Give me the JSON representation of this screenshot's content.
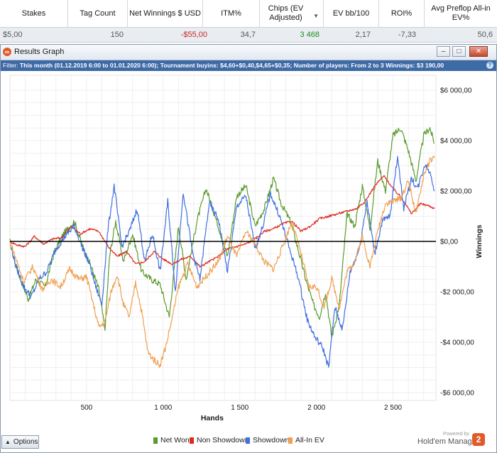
{
  "table": {
    "headers": [
      "Stakes",
      "Tag Count",
      "Net Winnings $ USD",
      "ITM%",
      "Chips (EV Adjusted)",
      "EV bb/100",
      "ROI%",
      "Avg Preflop All-in EV%"
    ],
    "row": [
      "$5,00",
      "150",
      "-$55,00",
      "34,7",
      "3 468",
      "2,17",
      "-7,33",
      "50,6"
    ],
    "colors": {
      "negative": "#cc2222",
      "positive": "#1e8a1e",
      "neutral": "#555555"
    }
  },
  "window": {
    "title": "Results Graph",
    "icon": "holdem-manager-2-icon",
    "controls": [
      "–",
      "□",
      "✕"
    ]
  },
  "filter": {
    "label": "Filter: ",
    "text": "This month (01.12.2019 6:00 to 01.01.2020 6:00); Tournament buyins: $4,60+$0,40,$4,65+$0,35; Number of players: From 2 to 3 Winnings: $3 190,00",
    "help": "?"
  },
  "options_label": "Options",
  "powered_by": "Powered by",
  "brand": "Hold'em Manager",
  "brand_mark": "2",
  "chart_data": {
    "type": "line",
    "xlabel": "Hands",
    "ylabel": "Winnings",
    "xlim": [
      0,
      2780
    ],
    "ylim": [
      -6000,
      6000
    ],
    "x_ticks": [
      500,
      1000,
      1500,
      2000,
      2500
    ],
    "x_tick_labels": [
      "500",
      "1 000",
      "1 500",
      "2 000",
      "2 500"
    ],
    "y_ticks": [
      6000,
      4000,
      2000,
      0,
      -2000,
      -4000,
      -6000
    ],
    "y_tick_labels": [
      "$6 000,00",
      "$4 000,00",
      "$2 000,00",
      "$0,00",
      "-$2 000,00",
      "-$4 000,00",
      "-$6 000,00"
    ],
    "grid": true,
    "series": [
      {
        "name": "Net Won",
        "color": "#5a9a2e",
        "x": [
          0,
          30,
          70,
          120,
          170,
          230,
          290,
          350,
          420,
          480,
          530,
          580,
          620,
          650,
          690,
          740,
          800,
          860,
          920,
          980,
          1040,
          1100,
          1150,
          1220,
          1280,
          1350,
          1420,
          1480,
          1540,
          1600,
          1660,
          1720,
          1770,
          1830,
          1880,
          1930,
          1980,
          2020,
          2060,
          2100,
          2150,
          2200,
          2250,
          2300,
          2350,
          2400,
          2450,
          2500,
          2550,
          2600,
          2650,
          2700,
          2740,
          2770
        ],
        "values": [
          0,
          -800,
          -1500,
          -2300,
          -1500,
          -1800,
          -400,
          300,
          800,
          -300,
          -1000,
          -1900,
          -3500,
          -600,
          800,
          -800,
          300,
          -1200,
          -1500,
          -1700,
          -3000,
          600,
          -1500,
          800,
          2100,
          800,
          -600,
          1800,
          2200,
          600,
          1300,
          2500,
          1500,
          800,
          -300,
          -1500,
          -2500,
          -3000,
          -2000,
          -3800,
          -2500,
          1100,
          600,
          2200,
          500,
          3200,
          2000,
          4200,
          4500,
          3600,
          2400,
          4200,
          4500,
          3900
        ]
      },
      {
        "name": "Non Showdown",
        "color": "#dd2a1e",
        "x": [
          0,
          50,
          100,
          160,
          220,
          280,
          340,
          400,
          460,
          520,
          580,
          640,
          700,
          760,
          820,
          880,
          940,
          1000,
          1060,
          1120,
          1180,
          1240,
          1300,
          1360,
          1420,
          1480,
          1540,
          1600,
          1660,
          1720,
          1780,
          1840,
          1900,
          1960,
          2020,
          2080,
          2140,
          2200,
          2260,
          2320,
          2380,
          2440,
          2500,
          2560,
          2620,
          2680,
          2740,
          2770
        ],
        "values": [
          0,
          -150,
          -200,
          200,
          -100,
          100,
          150,
          600,
          300,
          500,
          400,
          -200,
          -600,
          -400,
          -900,
          -800,
          -400,
          -700,
          -900,
          -700,
          -600,
          -1000,
          -800,
          -600,
          -300,
          -200,
          -100,
          100,
          400,
          500,
          700,
          800,
          400,
          600,
          900,
          1000,
          1100,
          1200,
          1300,
          1600,
          2200,
          2600,
          2100,
          1700,
          1100,
          1500,
          1400,
          1300
        ]
      },
      {
        "name": "Showdown",
        "color": "#3f6fe0",
        "x": [
          0,
          40,
          90,
          140,
          190,
          240,
          300,
          360,
          420,
          470,
          520,
          560,
          600,
          640,
          680,
          730,
          780,
          830,
          880,
          930,
          980,
          1030,
          1080,
          1130,
          1190,
          1240,
          1300,
          1360,
          1420,
          1480,
          1540,
          1600,
          1650,
          1700,
          1760,
          1820,
          1880,
          1940,
          1990,
          2040,
          2080,
          2120,
          2170,
          2220,
          2280,
          2330,
          2380,
          2430,
          2480,
          2530,
          2570,
          2620,
          2660,
          2710,
          2750,
          2770
        ],
        "values": [
          0,
          -1000,
          -1800,
          -2200,
          -1500,
          -1200,
          -300,
          200,
          600,
          -200,
          -900,
          -1800,
          -2500,
          500,
          2200,
          -200,
          400,
          1300,
          -800,
          300,
          -1200,
          1600,
          -2000,
          2000,
          -400,
          -1500,
          1500,
          900,
          -1200,
          1400,
          1800,
          -300,
          600,
          1900,
          1000,
          -200,
          -1400,
          -3100,
          -3800,
          -4200,
          -5000,
          -2600,
          -3500,
          -1200,
          -300,
          1600,
          -500,
          800,
          1000,
          3400,
          1300,
          2500,
          2100,
          3100,
          2600,
          2000
        ]
      },
      {
        "name": "All-In EV",
        "color": "#f0a050",
        "x": [
          0,
          40,
          90,
          150,
          210,
          270,
          330,
          390,
          450,
          500,
          540,
          580,
          620,
          660,
          700,
          740,
          780,
          820,
          860,
          900,
          940,
          980,
          1020,
          1060,
          1100,
          1160,
          1220,
          1290,
          1360,
          1420,
          1480,
          1540,
          1600,
          1660,
          1720,
          1780,
          1840,
          1900,
          1950,
          2000,
          2050,
          2100,
          2150,
          2200,
          2250,
          2300,
          2350,
          2400,
          2450,
          2500,
          2550,
          2600,
          2650,
          2700,
          2740,
          2770
        ],
        "values": [
          0,
          -700,
          -1600,
          -1000,
          -1900,
          -1500,
          -1800,
          -1100,
          -1500,
          -1400,
          -2400,
          -3400,
          -3200,
          -2000,
          -1300,
          -2500,
          -3000,
          -1600,
          -2800,
          -4400,
          -4700,
          -4900,
          -4100,
          -3000,
          -1800,
          -900,
          -1800,
          -1300,
          -800,
          200,
          -600,
          400,
          -100,
          -800,
          -1100,
          -200,
          800,
          -500,
          -1800,
          -1800,
          -2600,
          -1500,
          -2600,
          -1200,
          -800,
          200,
          -1000,
          400,
          1500,
          1600,
          1700,
          2400,
          1100,
          2600,
          3200,
          3300
        ]
      }
    ]
  }
}
